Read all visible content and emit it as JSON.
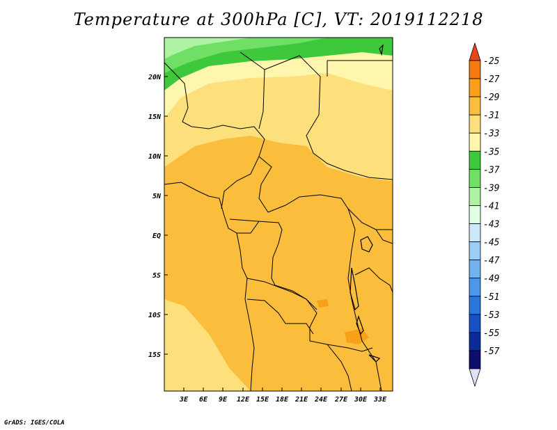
{
  "title": "Temperature at 300hPa [C], VT: 2019112218",
  "credit": "GrADS: IGES/COLA",
  "map": {
    "lat_labels": [
      "20N",
      "15N",
      "10N",
      "5N",
      "EQ",
      "5S",
      "10S",
      "15S"
    ],
    "lon_labels": [
      "3E",
      "6E",
      "9E",
      "12E",
      "15E",
      "18E",
      "21E",
      "24E",
      "27E",
      "30E",
      "33E"
    ]
  },
  "colorbar": {
    "levels": [
      "-25",
      "-27",
      "-29",
      "-31",
      "-33",
      "-35",
      "-37",
      "-39",
      "-41",
      "-43",
      "-45",
      "-47",
      "-49",
      "-51",
      "-53",
      "-55",
      "-57"
    ],
    "colors": [
      "#e8461a",
      "#f57a0f",
      "#f9a019",
      "#fbbd3c",
      "#fde07b",
      "#fef6ac",
      "#3ec93c",
      "#6fdf66",
      "#aef3a3",
      "#e1ffe2",
      "#cde8fb",
      "#9dcdf5",
      "#72b3ef",
      "#4b97e9",
      "#2b76dc",
      "#1551c4",
      "#0b2c98",
      "#0d0d6c",
      "#e2e0f5"
    ]
  }
}
